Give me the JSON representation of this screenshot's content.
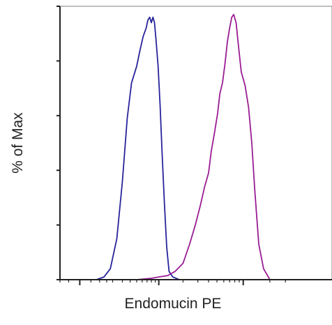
{
  "chart_data": {
    "type": "line",
    "title": "",
    "xlabel": "Endomucin PE",
    "ylabel": "% of Max",
    "x_scale": "log",
    "xlim": [
      -100,
      100000
    ],
    "ylim": [
      0,
      100
    ],
    "grid": false,
    "legend": "none",
    "major_x_ticks": [
      0,
      1000,
      10000
    ],
    "major_y_ticks": [
      0,
      20,
      40,
      60,
      80,
      100
    ],
    "minor_x_ticks": [
      -100,
      -50,
      50,
      100,
      150,
      200,
      300,
      400,
      500,
      600,
      700,
      800,
      900,
      2000,
      3000,
      4000,
      5000,
      6000,
      7000,
      8000,
      9000,
      20000,
      30000
    ],
    "series": [
      {
        "color": "#27239a",
        "x": [
          -100,
          0,
          80,
          130,
          180,
          240,
          300,
          360,
          420,
          500,
          560,
          620,
          680,
          720,
          760,
          800,
          840,
          880,
          920,
          980,
          1040,
          1100,
          1180,
          1260,
          1350,
          1500,
          1800,
          2500,
          100000
        ],
        "y": [
          0,
          0,
          0,
          1,
          4,
          15,
          36,
          59,
          72,
          78,
          84,
          89,
          92,
          95,
          96,
          94,
          96,
          94,
          88,
          78,
          64,
          47,
          28,
          12,
          3,
          1,
          0,
          0,
          0
        ]
      },
      {
        "color": "#9a1c94",
        "x": [
          -100,
          0,
          500,
          800,
          1000,
          1300,
          1600,
          2000,
          2400,
          2800,
          3200,
          3600,
          4000,
          4300,
          4700,
          5100,
          5400,
          5800,
          6200,
          6600,
          7000,
          7400,
          7800,
          8300,
          8800,
          9500,
          10500,
          11500,
          12500,
          13500,
          15000,
          17000,
          20000,
          100000
        ],
        "y": [
          0,
          0,
          0,
          0.5,
          1,
          1.5,
          3,
          6,
          13,
          20,
          27,
          34,
          39,
          47,
          54,
          61,
          68,
          72,
          79,
          87,
          92,
          96,
          97,
          94,
          86,
          76,
          71,
          63,
          50,
          33,
          13,
          4,
          0,
          0
        ]
      }
    ]
  }
}
